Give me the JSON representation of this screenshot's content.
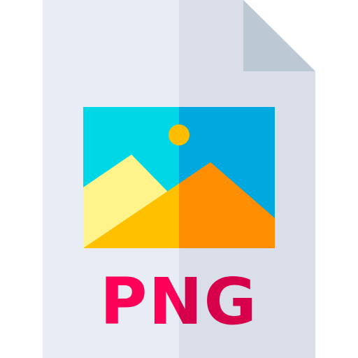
{
  "icon": {
    "name": "png-file-icon",
    "label": "PNG",
    "colors": {
      "page_light": "#E8ECF4",
      "page_shade": "#D9DEE9",
      "corner_fold": "#BCC8D3",
      "sky_light": "#00D7E6",
      "sky_dark": "#00A8E0",
      "sun": "#FFBD00",
      "mountain_back": "#FFF38C",
      "mountain_front_light": "#FFC000",
      "mountain_front_dark": "#FF8F00",
      "label_light": "#FF0058",
      "label_dark": "#D7004A"
    }
  }
}
